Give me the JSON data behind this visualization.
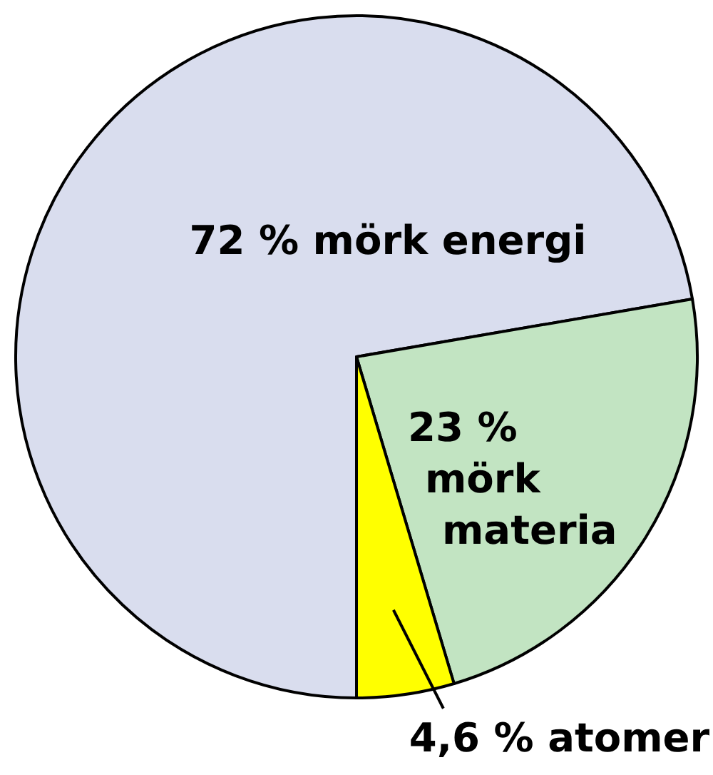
{
  "chart_data": {
    "type": "pie",
    "categories": [
      "mörk energi",
      "mörk materia",
      "atomer"
    ],
    "values": [
      72,
      23,
      4.6
    ],
    "value_labels": [
      "72 %",
      "23 %",
      "4,6 %"
    ],
    "colors": [
      "#d9ddee",
      "#c2e4c2",
      "#ffff00"
    ]
  }
}
